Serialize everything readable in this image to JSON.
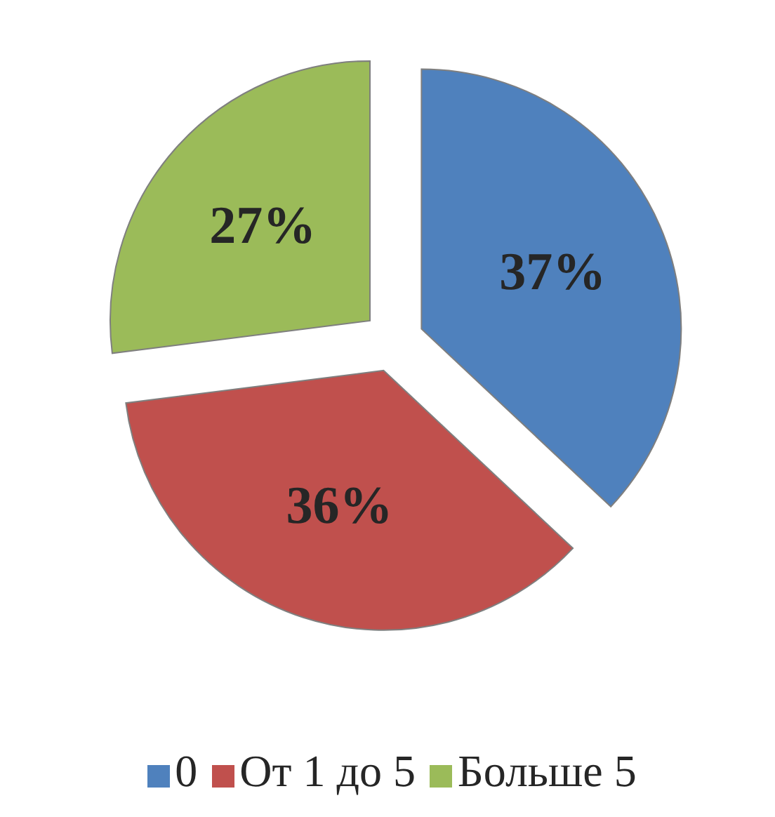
{
  "chart_data": {
    "type": "pie",
    "categories": [
      "0",
      "От 1 до 5",
      "Больше 5"
    ],
    "values": [
      37,
      36,
      27
    ],
    "colors": [
      "#4f81bd",
      "#c0504d",
      "#9bbb59"
    ],
    "value_labels": [
      "37%",
      "36%",
      "27%"
    ],
    "legend": "bottom"
  }
}
